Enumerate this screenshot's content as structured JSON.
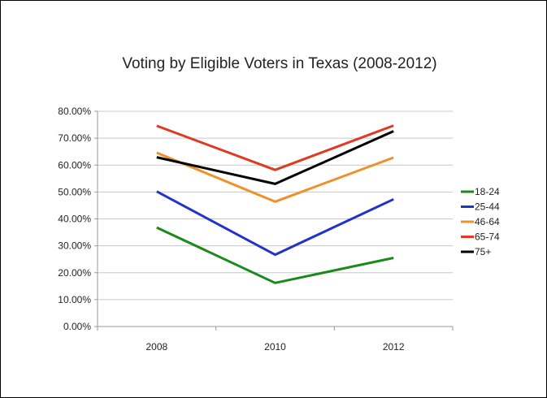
{
  "chart_data": {
    "type": "line",
    "title": "Voting by Eligible Voters in Texas (2008-2012)",
    "xlabel": "",
    "ylabel": "",
    "categories": [
      "2008",
      "2010",
      "2012"
    ],
    "ylim": [
      0,
      80
    ],
    "y_ticks": [
      0,
      10,
      20,
      30,
      40,
      50,
      60,
      70,
      80
    ],
    "y_tick_labels": [
      "0.00%",
      "10.00%",
      "20.00%",
      "30.00%",
      "40.00%",
      "50.00%",
      "60.00%",
      "70.00%",
      "80.00%"
    ],
    "grid": true,
    "legend_position": "right",
    "series": [
      {
        "name": "18-24",
        "color": "#1a8a1a",
        "values": [
          36.8,
          16.2,
          25.5
        ]
      },
      {
        "name": "25-44",
        "color": "#2233cc",
        "values": [
          50.2,
          26.7,
          47.3
        ]
      },
      {
        "name": "46-64",
        "color": "#f0902a",
        "values": [
          64.6,
          46.4,
          62.8
        ]
      },
      {
        "name": "65-74",
        "color": "#e03a20",
        "values": [
          74.6,
          58.2,
          74.7
        ]
      },
      {
        "name": "75+",
        "color": "#000000",
        "values": [
          62.9,
          53.0,
          72.6
        ]
      }
    ]
  }
}
